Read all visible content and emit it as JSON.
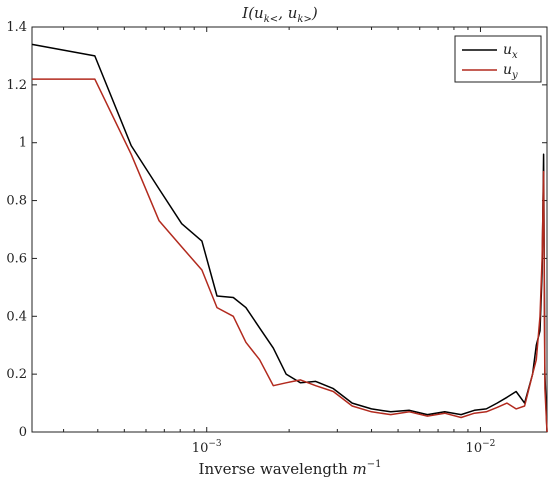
{
  "chart_data": {
    "type": "line",
    "title": "I(u_{k<}, u_{k>})",
    "xlabel": "Inverse wavelength m^{-1}",
    "ylabel": "",
    "x_scale": "log",
    "xlim": [
      0.00023,
      0.0175
    ],
    "ylim": [
      0,
      1.4
    ],
    "grid": false,
    "legend_position": "top-right",
    "x_ticks": [
      {
        "value": 0.001,
        "label": "10^{-3}"
      },
      {
        "value": 0.01,
        "label": "10^{-2}"
      }
    ],
    "y_ticks": [
      0,
      0.2,
      0.4,
      0.6,
      0.8,
      1,
      1.2,
      1.4
    ],
    "y_tick_labels": [
      "0",
      "0.2",
      "0.4",
      "0.6",
      "0.8",
      "1",
      "1.2",
      "1.4"
    ],
    "series": [
      {
        "name": "u_x",
        "color": "#000000",
        "x": [
          0.00023,
          0.00039,
          0.00053,
          0.00067,
          0.00081,
          0.00096,
          0.00109,
          0.00125,
          0.00139,
          0.00156,
          0.00175,
          0.00195,
          0.0022,
          0.0025,
          0.0029,
          0.0034,
          0.004,
          0.0047,
          0.0055,
          0.0064,
          0.0074,
          0.0085,
          0.0095,
          0.0105,
          0.0115,
          0.0125,
          0.0135,
          0.0145,
          0.0155,
          0.016,
          0.0165,
          0.0168,
          0.017,
          0.0172,
          0.0175
        ],
        "y": [
          1.34,
          1.3,
          0.99,
          0.84,
          0.72,
          0.66,
          0.47,
          0.465,
          0.43,
          0.36,
          0.29,
          0.2,
          0.17,
          0.175,
          0.15,
          0.1,
          0.08,
          0.07,
          0.075,
          0.06,
          0.07,
          0.06,
          0.075,
          0.08,
          0.1,
          0.12,
          0.14,
          0.1,
          0.2,
          0.3,
          0.35,
          0.55,
          0.96,
          0.2,
          0.0
        ]
      },
      {
        "name": "u_y",
        "color": "#b22a1e",
        "x": [
          0.00023,
          0.00039,
          0.00053,
          0.00067,
          0.00081,
          0.00096,
          0.00109,
          0.00125,
          0.00139,
          0.00156,
          0.00175,
          0.00195,
          0.0022,
          0.0025,
          0.0029,
          0.0034,
          0.004,
          0.0047,
          0.0055,
          0.0064,
          0.0074,
          0.0085,
          0.0095,
          0.0105,
          0.0115,
          0.0125,
          0.0135,
          0.0145,
          0.0155,
          0.016,
          0.0165,
          0.0168,
          0.017,
          0.0172,
          0.0175
        ],
        "y": [
          1.22,
          1.22,
          0.96,
          0.73,
          0.64,
          0.56,
          0.43,
          0.4,
          0.31,
          0.25,
          0.16,
          0.17,
          0.18,
          0.16,
          0.14,
          0.09,
          0.07,
          0.06,
          0.07,
          0.055,
          0.065,
          0.05,
          0.065,
          0.07,
          0.085,
          0.1,
          0.08,
          0.09,
          0.2,
          0.25,
          0.4,
          0.6,
          0.9,
          0.15,
          0.0
        ]
      }
    ]
  }
}
